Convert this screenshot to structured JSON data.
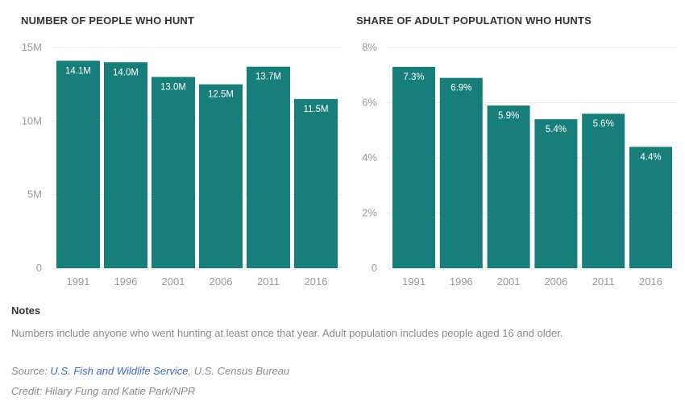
{
  "chart_data": [
    {
      "type": "bar",
      "title": "NUMBER OF PEOPLE WHO HUNT",
      "categories": [
        "1991",
        "1996",
        "2001",
        "2006",
        "2011",
        "2016"
      ],
      "values": [
        14.1,
        14.0,
        13.0,
        12.5,
        13.7,
        11.5
      ],
      "value_labels": [
        "14.1M",
        "14.0M",
        "13.0M",
        "12.5M",
        "13.7M",
        "11.5M"
      ],
      "yticks": [
        0,
        5,
        10,
        15
      ],
      "ytick_labels": [
        "0",
        "5M",
        "10M",
        "15M"
      ],
      "ylim": [
        0,
        15
      ],
      "grid": true,
      "color": "#177e7a"
    },
    {
      "type": "bar",
      "title": "SHARE OF ADULT POPULATION WHO HUNTS",
      "categories": [
        "1991",
        "1996",
        "2001",
        "2006",
        "2011",
        "2016"
      ],
      "values": [
        7.3,
        6.9,
        5.9,
        5.4,
        5.6,
        4.4
      ],
      "value_labels": [
        "7.3%",
        "6.9%",
        "5.9%",
        "5.4%",
        "5.6%",
        "4.4%"
      ],
      "yticks": [
        0,
        2,
        4,
        6,
        8
      ],
      "ytick_labels": [
        "0",
        "2%",
        "4%",
        "6%",
        "8%"
      ],
      "ylim": [
        0,
        8
      ],
      "grid": true,
      "color": "#177e7a"
    }
  ],
  "notes": {
    "heading": "Notes",
    "text": "Numbers include anyone who went hunting at least once that year. Adult population includes people aged 16 and older."
  },
  "source": {
    "prefix": "Source: ",
    "link_text": "U.S. Fish and Wildlife Service",
    "suffix": ", U.S. Census Bureau"
  },
  "credit": "Credit: Hilary Fung and Katie Park/NPR",
  "colors": {
    "bar": "#177e7a",
    "link": "#3a6bc4"
  }
}
